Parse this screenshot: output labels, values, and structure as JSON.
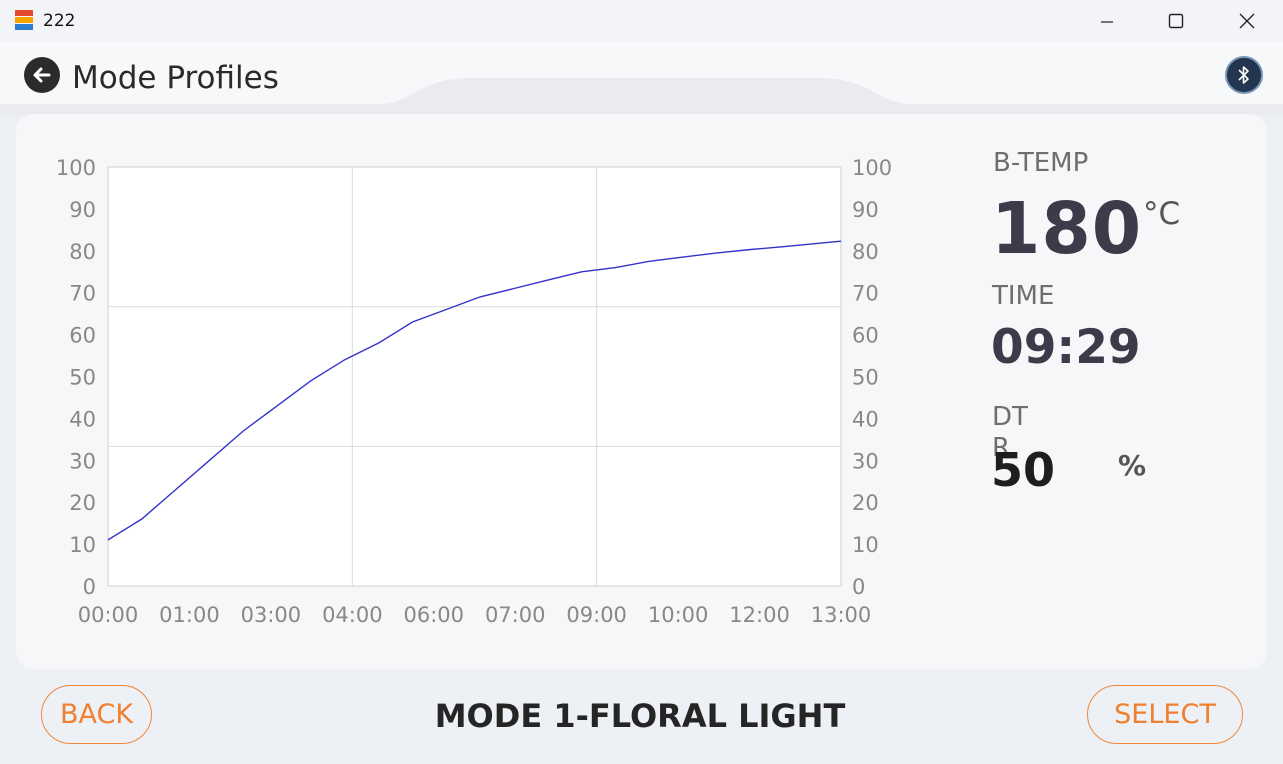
{
  "window": {
    "title": "222"
  },
  "header": {
    "title": "Mode Profiles"
  },
  "readouts": {
    "btemp_label": "B-TEMP",
    "btemp_value": "180",
    "btemp_unit": "°C",
    "time_label": "TIME",
    "time_value": "09:29",
    "dtr_label": "DT",
    "dtr_label_2": "R",
    "dtr_value": "50",
    "dtr_unit": "%"
  },
  "footer": {
    "back_label": "BACK",
    "mode_name": "MODE 1-FLORAL LIGHT",
    "select_label": "SELECT"
  },
  "colors": {
    "accent": "#f08030",
    "curve": "#3333cc",
    "bluetooth": "#24364f"
  },
  "chart_data": {
    "type": "line",
    "title": "",
    "xlabel": "",
    "ylabel": "",
    "ylim": [
      0,
      100
    ],
    "y_ticks": [
      "0",
      "10",
      "20",
      "30",
      "40",
      "50",
      "60",
      "70",
      "80",
      "90",
      "100"
    ],
    "x_ticks": [
      "00:00",
      "01:00",
      "03:00",
      "04:00",
      "06:00",
      "07:00",
      "09:00",
      "10:00",
      "12:00",
      "13:00"
    ],
    "grid": true,
    "series": [
      {
        "x": [
          0.0,
          0.6,
          1.2,
          1.8,
          2.4,
          3.0,
          3.6,
          4.2,
          4.8,
          5.4,
          6.0,
          6.6,
          7.2,
          7.8,
          8.4,
          9.0,
          9.6,
          10.2,
          10.8,
          11.4,
          12.0,
          12.6,
          13.0
        ],
        "values": [
          11,
          16,
          23,
          30,
          37,
          43,
          49,
          54,
          58,
          63,
          66,
          69,
          71,
          73,
          75,
          76,
          77.5,
          78.5,
          79.5,
          80.3,
          81,
          81.8,
          82.3
        ]
      }
    ]
  }
}
